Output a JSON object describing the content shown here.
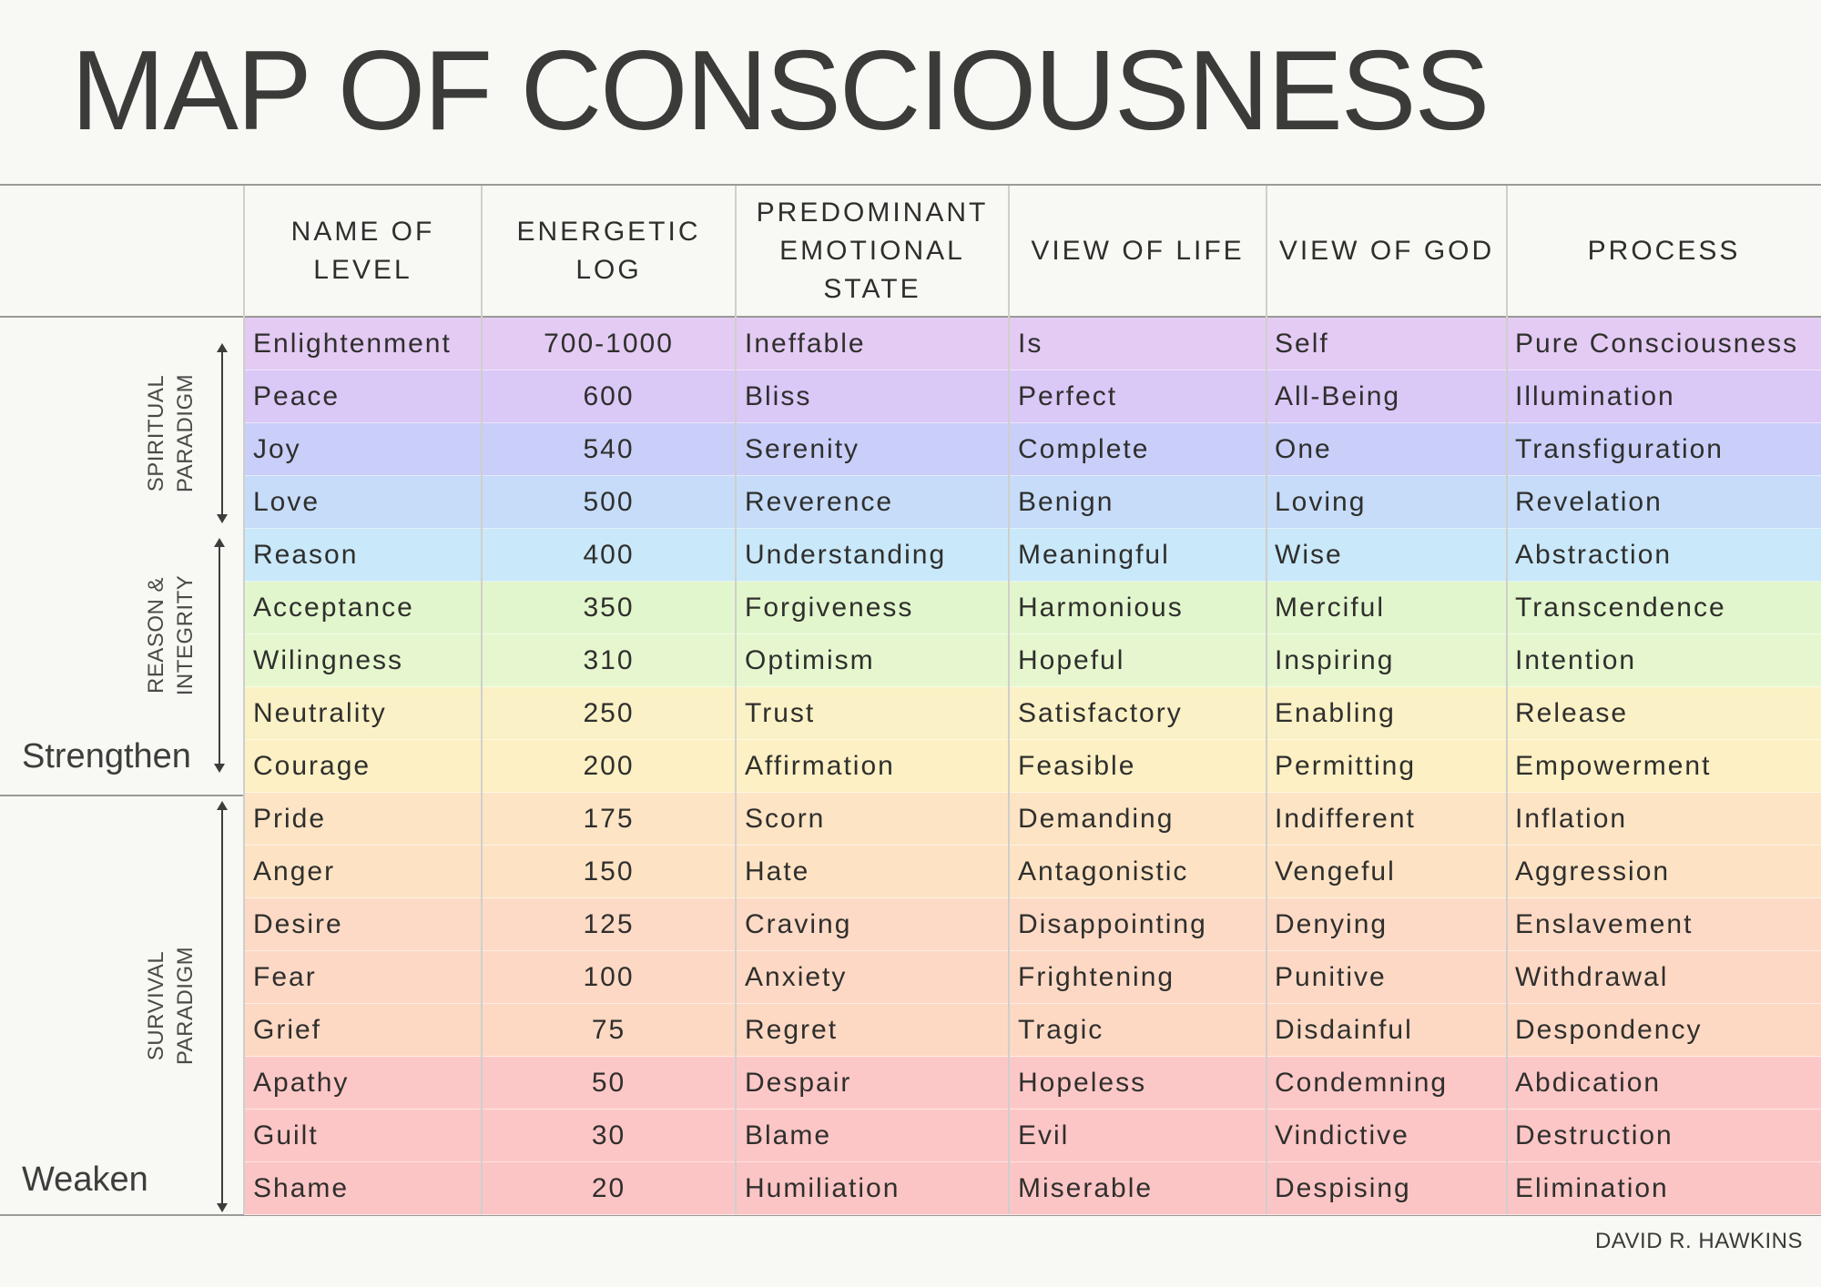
{
  "title": "MAP OF CONSCIOUSNESS",
  "headers": {
    "name": "NAME OF\nLEVEL",
    "log": "ENERGETIC\nLOG",
    "emotion": "PREDOMINANT\nEMOTIONAL\nSTATE",
    "life": "VIEW OF LIFE",
    "god": "VIEW OF GOD",
    "process": "PROCESS"
  },
  "paradigms": {
    "spiritual": "SPIRITUAL\nPARADIGM",
    "reason": "REASON &\nINTEGRITY",
    "survival": "SURVIVAL\nPARADIGM"
  },
  "side_words": {
    "strengthen": "Strengthen",
    "weaken": "Weaken"
  },
  "credit": "DAVID R. HAWKINS",
  "rows": [
    {
      "name": "Enlightenment",
      "log": "700-1000",
      "emotion": "Ineffable",
      "life": "Is",
      "god": "Self",
      "process": "Pure Consciousness",
      "color": "#e3cbf3"
    },
    {
      "name": "Peace",
      "log": "600",
      "emotion": "Bliss",
      "life": "Perfect",
      "god": "All-Being",
      "process": "Illumination",
      "color": "#dac8f7"
    },
    {
      "name": "Joy",
      "log": "540",
      "emotion": "Serenity",
      "life": "Complete",
      "god": "One",
      "process": "Transfiguration",
      "color": "#c9cff9"
    },
    {
      "name": "Love",
      "log": "500",
      "emotion": "Reverence",
      "life": "Benign",
      "god": "Loving",
      "process": "Revelation",
      "color": "#c6dcf9"
    },
    {
      "name": "Reason",
      "log": "400",
      "emotion": "Understanding",
      "life": "Meaningful",
      "god": "Wise",
      "process": "Abstraction",
      "color": "#c9e8f9"
    },
    {
      "name": "Acceptance",
      "log": "350",
      "emotion": "Forgiveness",
      "life": "Harmonious",
      "god": "Merciful",
      "process": "Transcendence",
      "color": "#e2f6cd"
    },
    {
      "name": "Wilingness",
      "log": "310",
      "emotion": "Optimism",
      "life": "Hopeful",
      "god": "Inspiring",
      "process": "Intention",
      "color": "#e6f7cf"
    },
    {
      "name": "Neutrality",
      "log": "250",
      "emotion": "Trust",
      "life": "Satisfactory",
      "god": "Enabling",
      "process": "Release",
      "color": "#fbf1c6"
    },
    {
      "name": "Courage",
      "log": "200",
      "emotion": "Affirmation",
      "life": "Feasible",
      "god": "Permitting",
      "process": "Empowerment",
      "color": "#fcf0c4"
    },
    {
      "name": "Pride",
      "log": "175",
      "emotion": "Scorn",
      "life": "Demanding",
      "god": "Indifferent",
      "process": "Inflation",
      "color": "#fde4c5"
    },
    {
      "name": "Anger",
      "log": "150",
      "emotion": "Hate",
      "life": "Antagonistic",
      "god": "Vengeful",
      "process": "Aggression",
      "color": "#fde3c4"
    },
    {
      "name": "Desire",
      "log": "125",
      "emotion": "Craving",
      "life": "Disappointing",
      "god": "Denying",
      "process": "Enslavement",
      "color": "#fddac6"
    },
    {
      "name": "Fear",
      "log": "100",
      "emotion": "Anxiety",
      "life": "Frightening",
      "god": "Punitive",
      "process": "Withdrawal",
      "color": "#fdd9c5"
    },
    {
      "name": "Grief",
      "log": "75",
      "emotion": "Regret",
      "life": "Tragic",
      "god": "Disdainful",
      "process": "Despondency",
      "color": "#fdd8c3"
    },
    {
      "name": "Apathy",
      "log": "50",
      "emotion": "Despair",
      "life": "Hopeless",
      "god": "Condemning",
      "process": "Abdication",
      "color": "#fcc8c7"
    },
    {
      "name": "Guilt",
      "log": "30",
      "emotion": "Blame",
      "life": "Evil",
      "god": "Vindictive",
      "process": "Destruction",
      "color": "#fcc6c6"
    },
    {
      "name": "Shame",
      "log": "20",
      "emotion": "Humiliation",
      "life": "Miserable",
      "god": "Despising",
      "process": "Elimination",
      "color": "#fcc5c5"
    }
  ]
}
